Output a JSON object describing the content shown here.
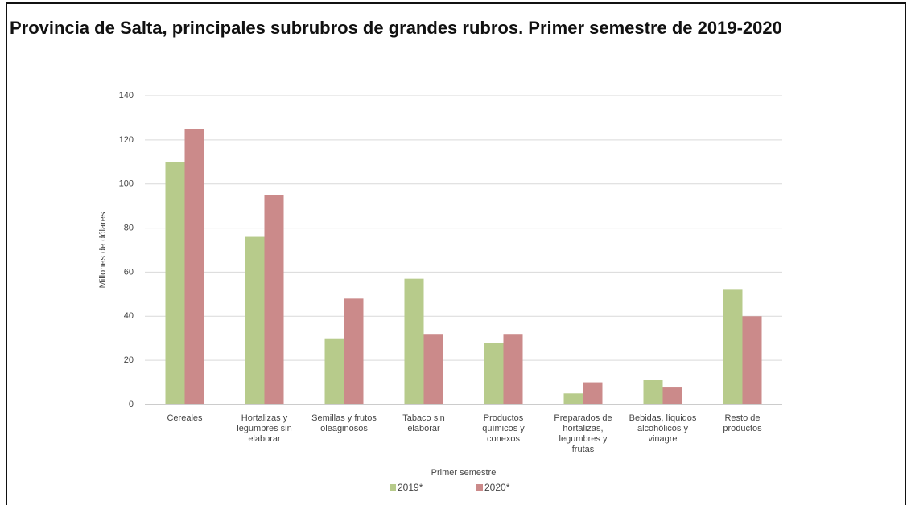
{
  "chart_data": {
    "type": "bar",
    "title": "Provincia de Salta, principales subrubros de grandes rubros. Primer semestre de 2019-2020",
    "y_label": "Millones de dólares",
    "x_label": "Primer semestre",
    "categories": [
      "Cereales",
      "Hortalizas y legumbres sin elaborar",
      "Semillas y frutos oleaginosos",
      "Tabaco sin elaborar",
      "Productos químicos y conexos",
      "Preparados de hortalizas, legumbres y frutas",
      "Bebidas, líquidos alcohólicos y vinagre",
      "Resto de productos"
    ],
    "series": [
      {
        "name": "2019*",
        "color": "#b7cb8b",
        "values": [
          110,
          76,
          30,
          57,
          28,
          5,
          11,
          52
        ]
      },
      {
        "name": "2020*",
        "color": "#cb8a8a",
        "values": [
          125,
          95,
          48,
          32,
          32,
          10,
          8,
          40
        ]
      }
    ],
    "ylim": [
      0,
      140
    ],
    "yticks": [
      0,
      20,
      40,
      60,
      80,
      100,
      120,
      140
    ],
    "grid": true,
    "legend": "bottom"
  }
}
